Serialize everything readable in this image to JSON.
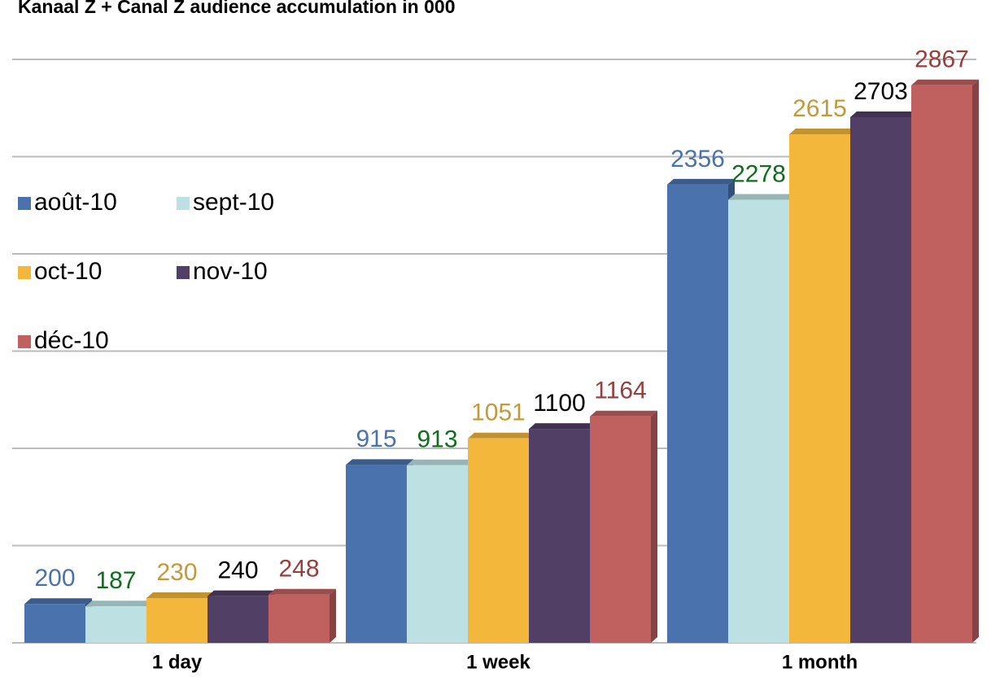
{
  "chart_data": {
    "type": "bar",
    "title": "Kanaal Z + Canal Z audience accumulation  in 000",
    "categories": [
      "1 day",
      "1 week",
      "1 month"
    ],
    "series": [
      {
        "name": "août-10",
        "color": "#4a72ad",
        "label_color": "#4a72ad",
        "values": [
          200,
          915,
          2356
        ]
      },
      {
        "name": "sept-10",
        "color": "#bde1e3",
        "label_color": "#0f6e1e",
        "values": [
          187,
          913,
          2278
        ]
      },
      {
        "name": "oct-10",
        "color": "#f3b73b",
        "label_color": "#c39a3a",
        "values": [
          230,
          1051,
          2615
        ]
      },
      {
        "name": "nov-10",
        "color": "#523f66",
        "label_color": "#000000",
        "values": [
          240,
          1100,
          2703
        ]
      },
      {
        "name": "déc-10",
        "color": "#c0605f",
        "label_color": "#963f3c",
        "values": [
          248,
          1164,
          2867
        ]
      }
    ],
    "ylim": [
      0,
      3000
    ],
    "yticks": [
      0,
      500,
      1000,
      1500,
      2000,
      2500,
      3000
    ],
    "grid": true,
    "legend": "left"
  }
}
